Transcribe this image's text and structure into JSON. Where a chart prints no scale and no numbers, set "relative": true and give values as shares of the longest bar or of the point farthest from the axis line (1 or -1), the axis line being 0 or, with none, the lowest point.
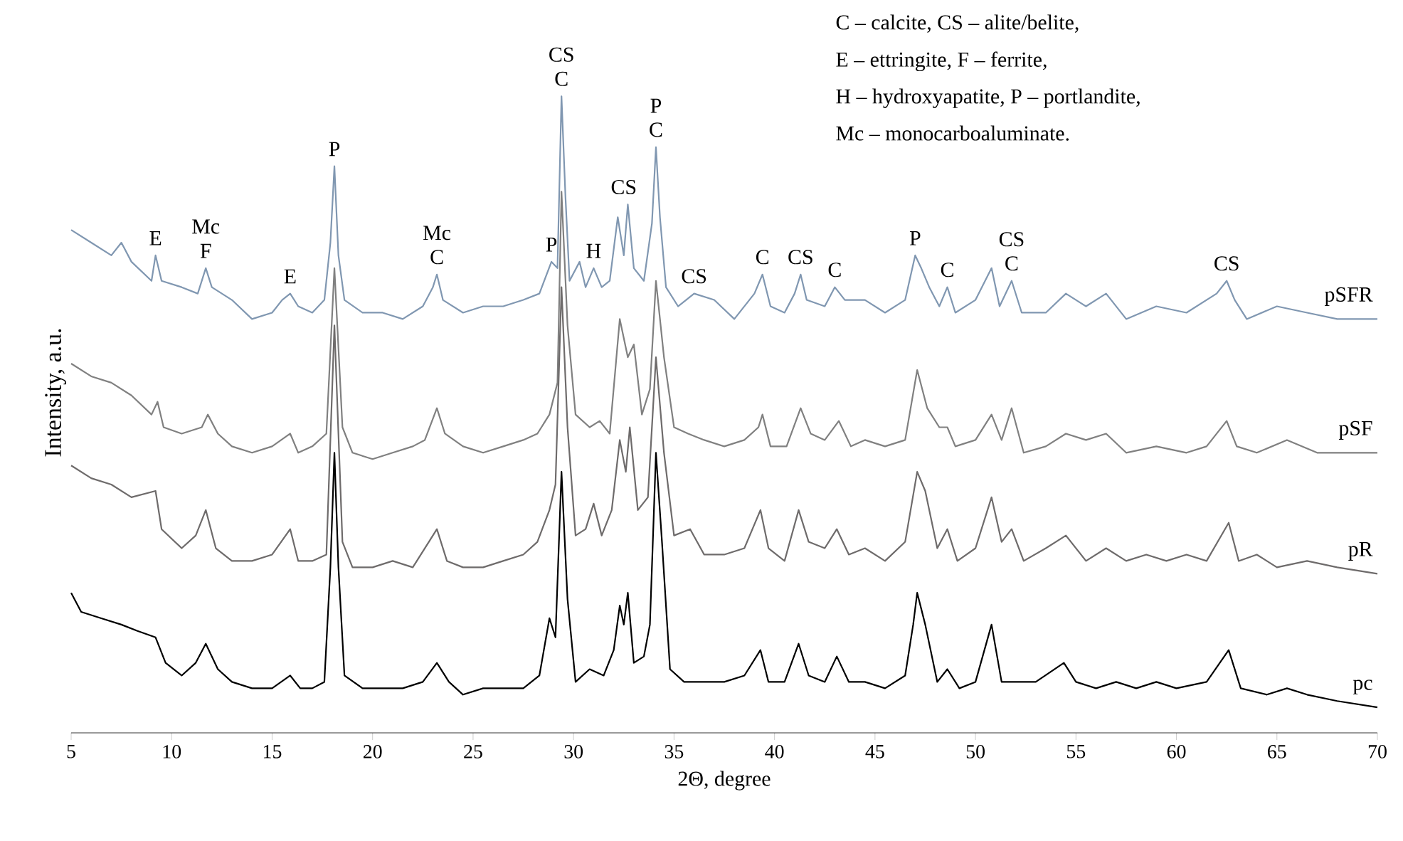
{
  "chart_data": {
    "type": "line",
    "relative": true,
    "xlabel": "2Θ, degree",
    "ylabel": "Intensity, a.u.",
    "xlim": [
      5,
      70
    ],
    "xticks": [
      5,
      10,
      15,
      20,
      25,
      30,
      35,
      40,
      45,
      50,
      55,
      60,
      65,
      70
    ],
    "series": [
      {
        "name": "pSFR",
        "color": "#8097b1",
        "x": [
          5,
          6,
          7,
          7.5,
          8,
          9,
          9.2,
          9.5,
          10.5,
          11.3,
          11.7,
          12,
          13,
          14,
          15,
          15.5,
          15.9,
          16.3,
          17,
          17.6,
          17.9,
          18.1,
          18.3,
          18.6,
          19.5,
          20.5,
          21.5,
          22.5,
          23,
          23.2,
          23.5,
          24.5,
          25.5,
          26.5,
          27.5,
          28.3,
          28.9,
          29.2,
          29.4,
          29.6,
          29.8,
          30.3,
          30.6,
          31.0,
          31.4,
          31.8,
          32.2,
          32.5,
          32.7,
          33,
          33.5,
          33.9,
          34.1,
          34.3,
          34.6,
          35.2,
          36,
          37,
          38,
          39,
          39.4,
          39.8,
          40.5,
          41,
          41.3,
          41.6,
          42.5,
          43,
          43.5,
          44.5,
          45.5,
          46.5,
          47.0,
          47.3,
          47.7,
          48.2,
          48.6,
          49,
          50,
          50.8,
          51.2,
          51.8,
          52.3,
          53.5,
          54.5,
          55.5,
          56.5,
          57.5,
          59,
          60.5,
          62,
          62.5,
          62.9,
          63.5,
          65,
          66.5,
          68,
          70
        ],
        "values": [
          0.79,
          0.77,
          0.75,
          0.77,
          0.74,
          0.71,
          0.75,
          0.71,
          0.7,
          0.69,
          0.73,
          0.7,
          0.68,
          0.65,
          0.66,
          0.68,
          0.69,
          0.67,
          0.66,
          0.68,
          0.77,
          0.89,
          0.75,
          0.68,
          0.66,
          0.66,
          0.65,
          0.67,
          0.7,
          0.72,
          0.68,
          0.66,
          0.67,
          0.67,
          0.68,
          0.69,
          0.74,
          0.73,
          1,
          0.84,
          0.71,
          0.74,
          0.7,
          0.73,
          0.7,
          0.71,
          0.81,
          0.75,
          0.83,
          0.73,
          0.71,
          0.8,
          0.92,
          0.81,
          0.7,
          0.67,
          0.69,
          0.68,
          0.65,
          0.69,
          0.72,
          0.67,
          0.66,
          0.69,
          0.72,
          0.68,
          0.67,
          0.7,
          0.68,
          0.68,
          0.66,
          0.68,
          0.75,
          0.73,
          0.7,
          0.67,
          0.7,
          0.66,
          0.68,
          0.73,
          0.67,
          0.71,
          0.66,
          0.66,
          0.69,
          0.67,
          0.69,
          0.65,
          0.67,
          0.66,
          0.69,
          0.71,
          0.68,
          0.65,
          0.67,
          0.66,
          0.65,
          0.65
        ]
      },
      {
        "name": "pSF",
        "color": "#808080",
        "x": [
          5,
          6,
          7,
          8,
          9,
          9.3,
          9.6,
          10.5,
          11.5,
          11.8,
          12.3,
          13,
          14,
          15,
          15.9,
          16.3,
          17,
          17.7,
          18.1,
          18.5,
          19,
          20,
          21,
          22,
          22.6,
          23.2,
          23.6,
          24.5,
          25.5,
          26.5,
          27.5,
          28.2,
          28.8,
          29.2,
          29.4,
          29.7,
          30.1,
          30.8,
          31.3,
          31.8,
          32.3,
          32.7,
          33.0,
          33.4,
          33.8,
          34.1,
          34.5,
          35,
          35.7,
          36.5,
          37.5,
          38.5,
          39.2,
          39.4,
          39.8,
          40.6,
          41.3,
          41.8,
          42.5,
          43.2,
          43.8,
          44.5,
          45.5,
          46.5,
          47.1,
          47.6,
          48.2,
          48.6,
          49,
          50,
          50.8,
          51.3,
          51.8,
          52.4,
          53.5,
          54.5,
          55.5,
          56.5,
          57.5,
          59,
          60.5,
          61.5,
          62.5,
          63,
          64,
          65.5,
          67,
          68.5,
          70
        ],
        "values": [
          0.58,
          0.56,
          0.55,
          0.53,
          0.5,
          0.52,
          0.48,
          0.47,
          0.48,
          0.5,
          0.47,
          0.45,
          0.44,
          0.45,
          0.47,
          0.44,
          0.45,
          0.47,
          0.73,
          0.48,
          0.44,
          0.43,
          0.44,
          0.45,
          0.46,
          0.51,
          0.47,
          0.45,
          0.44,
          0.45,
          0.46,
          0.47,
          0.5,
          0.55,
          0.85,
          0.64,
          0.5,
          0.48,
          0.49,
          0.47,
          0.65,
          0.59,
          0.61,
          0.5,
          0.54,
          0.71,
          0.59,
          0.48,
          0.47,
          0.46,
          0.45,
          0.46,
          0.48,
          0.5,
          0.45,
          0.45,
          0.51,
          0.47,
          0.46,
          0.49,
          0.45,
          0.46,
          0.45,
          0.46,
          0.57,
          0.51,
          0.48,
          0.48,
          0.45,
          0.46,
          0.5,
          0.46,
          0.51,
          0.44,
          0.45,
          0.47,
          0.46,
          0.47,
          0.44,
          0.45,
          0.44,
          0.45,
          0.49,
          0.45,
          0.44,
          0.46,
          0.44,
          0.44,
          0.44
        ]
      },
      {
        "name": "pR",
        "color": "#6e6b6b",
        "x": [
          5,
          6,
          7,
          8,
          9.2,
          9.5,
          10.5,
          11.2,
          11.7,
          12.2,
          13,
          14,
          15,
          15.9,
          16.3,
          17,
          17.7,
          18.1,
          18.5,
          19,
          20,
          21,
          22,
          22.8,
          23.2,
          23.7,
          24.5,
          25.5,
          26.5,
          27.5,
          28.2,
          28.8,
          29.1,
          29.4,
          29.7,
          30.1,
          30.6,
          31.0,
          31.4,
          31.9,
          32.3,
          32.6,
          32.8,
          33.2,
          33.7,
          34.1,
          34.5,
          35,
          35.8,
          36.5,
          37.5,
          38.5,
          39.3,
          39.7,
          40.5,
          41.2,
          41.7,
          42.5,
          43.1,
          43.7,
          44.5,
          45.5,
          46.5,
          47.1,
          47.5,
          48.1,
          48.6,
          49.1,
          50,
          50.8,
          51.3,
          51.8,
          52.4,
          53.5,
          54.5,
          55.5,
          56.5,
          57.5,
          58.5,
          59.5,
          60.5,
          61.5,
          62.6,
          63.1,
          64,
          65,
          66.5,
          68,
          70
        ],
        "values": [
          0.42,
          0.4,
          0.39,
          0.37,
          0.38,
          0.32,
          0.29,
          0.31,
          0.35,
          0.29,
          0.27,
          0.27,
          0.28,
          0.32,
          0.27,
          0.27,
          0.28,
          0.64,
          0.3,
          0.26,
          0.26,
          0.27,
          0.26,
          0.3,
          0.32,
          0.27,
          0.26,
          0.26,
          0.27,
          0.28,
          0.3,
          0.35,
          0.39,
          0.7,
          0.48,
          0.31,
          0.32,
          0.36,
          0.31,
          0.35,
          0.46,
          0.41,
          0.48,
          0.35,
          0.37,
          0.59,
          0.44,
          0.31,
          0.32,
          0.28,
          0.28,
          0.29,
          0.35,
          0.29,
          0.27,
          0.35,
          0.3,
          0.29,
          0.32,
          0.28,
          0.29,
          0.27,
          0.3,
          0.41,
          0.38,
          0.29,
          0.32,
          0.27,
          0.29,
          0.37,
          0.3,
          0.32,
          0.27,
          0.29,
          0.31,
          0.27,
          0.29,
          0.27,
          0.28,
          0.27,
          0.28,
          0.27,
          0.33,
          0.27,
          0.28,
          0.26,
          0.27,
          0.26,
          0.25
        ]
      },
      {
        "name": "pc",
        "color": "#000000",
        "x": [
          5,
          5.5,
          6.5,
          7.5,
          8.3,
          9.2,
          9.7,
          10.5,
          11.2,
          11.7,
          12.3,
          13,
          14,
          15,
          15.9,
          16.4,
          17,
          17.6,
          17.9,
          18.1,
          18.3,
          18.6,
          19.5,
          20.5,
          21.5,
          22.5,
          23.2,
          23.8,
          24.5,
          25.5,
          26.5,
          27.5,
          28.3,
          28.8,
          29.1,
          29.4,
          29.7,
          30.1,
          30.8,
          31.5,
          32.0,
          32.3,
          32.5,
          32.7,
          33.0,
          33.5,
          33.8,
          34.1,
          34.4,
          34.8,
          35.5,
          36.5,
          37.5,
          38.5,
          39.3,
          39.7,
          40.5,
          41.2,
          41.7,
          42.5,
          43.1,
          43.7,
          44.5,
          45.5,
          46.5,
          46.9,
          47.1,
          47.5,
          48.1,
          48.6,
          49.2,
          50,
          50.8,
          51.3,
          52,
          53,
          54.4,
          55,
          56,
          57,
          58,
          59,
          60,
          61.5,
          62.6,
          63.2,
          64.5,
          65.5,
          66.5,
          68,
          70
        ],
        "values": [
          0.22,
          0.19,
          0.18,
          0.17,
          0.16,
          0.15,
          0.11,
          0.09,
          0.11,
          0.14,
          0.1,
          0.08,
          0.07,
          0.07,
          0.09,
          0.07,
          0.07,
          0.08,
          0.26,
          0.44,
          0.26,
          0.09,
          0.07,
          0.07,
          0.07,
          0.08,
          0.11,
          0.08,
          0.06,
          0.07,
          0.07,
          0.07,
          0.09,
          0.18,
          0.15,
          0.41,
          0.21,
          0.08,
          0.1,
          0.09,
          0.13,
          0.2,
          0.17,
          0.22,
          0.11,
          0.12,
          0.17,
          0.44,
          0.3,
          0.1,
          0.08,
          0.08,
          0.08,
          0.09,
          0.13,
          0.08,
          0.08,
          0.14,
          0.09,
          0.08,
          0.12,
          0.08,
          0.08,
          0.07,
          0.09,
          0.17,
          0.22,
          0.17,
          0.08,
          0.1,
          0.07,
          0.08,
          0.17,
          0.08,
          0.08,
          0.08,
          0.11,
          0.08,
          0.07,
          0.08,
          0.07,
          0.08,
          0.07,
          0.08,
          0.13,
          0.07,
          0.06,
          0.07,
          0.06,
          0.05,
          0.04
        ]
      }
    ],
    "annotations": [
      "C – calcite, CS – alite/belite,",
      "E – ettringite, F – ferrite,",
      "H – hydroxyapatite, P  – portlandite,",
      "Mc – monocarboaluminate.",
      {
        "text": "E",
        "x": 9.2,
        "y": 0.75
      },
      {
        "text": "Mc",
        "x": 11.7,
        "y": 0.73
      },
      {
        "text": "F",
        "x": 11.7,
        "y": 0.73
      },
      {
        "text": "E",
        "x": 15.9,
        "y": 0.69
      },
      {
        "text": "P",
        "x": 18.1,
        "y": 0.89
      },
      {
        "text": "Mc",
        "x": 23.2,
        "y": 0.72
      },
      {
        "text": "C",
        "x": 23.2,
        "y": 0.72
      },
      {
        "text": "P",
        "x": 28.9,
        "y": 0.74
      },
      {
        "text": "CS",
        "x": 29.4,
        "y": 1
      },
      {
        "text": "C",
        "x": 29.4,
        "y": 1
      },
      {
        "text": "H",
        "x": 31.0,
        "y": 0.73
      },
      {
        "text": "CS",
        "x": 32.5,
        "y": 0.83
      },
      {
        "text": "P",
        "x": 34.1,
        "y": 0.92
      },
      {
        "text": "C",
        "x": 34.1,
        "y": 0.92
      },
      {
        "text": "CS",
        "x": 36.0,
        "y": 0.69
      },
      {
        "text": "C",
        "x": 39.4,
        "y": 0.72
      },
      {
        "text": "CS",
        "x": 41.3,
        "y": 0.72
      },
      {
        "text": "C",
        "x": 43.0,
        "y": 0.7
      },
      {
        "text": "P",
        "x": 47.0,
        "y": 0.75
      },
      {
        "text": "C",
        "x": 48.6,
        "y": 0.7
      },
      {
        "text": "CS",
        "x": 51.8,
        "y": 0.71
      },
      {
        "text": "C",
        "x": 51.8,
        "y": 0.71
      },
      {
        "text": "CS",
        "x": 62.5,
        "y": 0.71
      }
    ]
  }
}
